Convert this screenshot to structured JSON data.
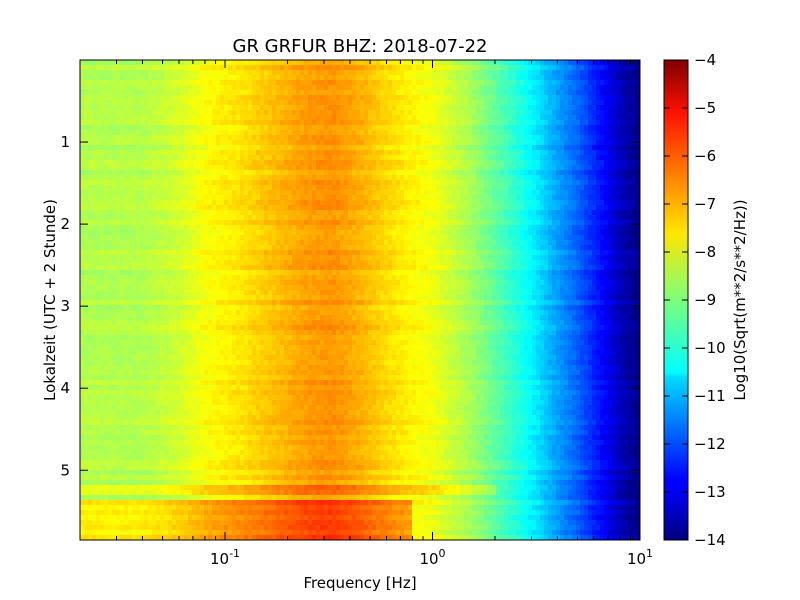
{
  "chart_data": {
    "type": "heatmap",
    "title": "GR GRFUR BHZ: 2018-07-22",
    "xlabel": "Frequency [Hz]",
    "ylabel": "Lokalzeit (UTC + 2 Stunde)",
    "x_scale": "log",
    "xlim": [
      0.02,
      10
    ],
    "x_ticks": [
      {
        "value": 0.1,
        "base": "10",
        "exp": "-1"
      },
      {
        "value": 1,
        "base": "10",
        "exp": "0"
      },
      {
        "value": 10,
        "base": "10",
        "exp": "1"
      }
    ],
    "ylim": [
      0,
      5.85
    ],
    "y_inverted": true,
    "y_ticks": [
      {
        "value": 1,
        "label": "1"
      },
      {
        "value": 2,
        "label": "2"
      },
      {
        "value": 3,
        "label": "3"
      },
      {
        "value": 4,
        "label": "4"
      },
      {
        "value": 5,
        "label": "5"
      }
    ],
    "colorbar": {
      "label": "Log10(Sqrt(m**2/s**2/Hz))",
      "range": [
        -14,
        -4
      ],
      "colormap": "jet",
      "ticks": [
        {
          "value": -4,
          "label": "−4"
        },
        {
          "value": -5,
          "label": "−5"
        },
        {
          "value": -6,
          "label": "−6"
        },
        {
          "value": -7,
          "label": "−7"
        },
        {
          "value": -8,
          "label": "−8"
        },
        {
          "value": -9,
          "label": "−9"
        },
        {
          "value": -10,
          "label": "−10"
        },
        {
          "value": -11,
          "label": "−11"
        },
        {
          "value": -12,
          "label": "−12"
        },
        {
          "value": -13,
          "label": "−13"
        },
        {
          "value": -14,
          "label": "−14"
        }
      ]
    },
    "frequency_profile": [
      {
        "f": 0.02,
        "v": -8.5
      },
      {
        "f": 0.04,
        "v": -8.5
      },
      {
        "f": 0.06,
        "v": -8.2
      },
      {
        "f": 0.08,
        "v": -7.8
      },
      {
        "f": 0.12,
        "v": -7.5
      },
      {
        "f": 0.18,
        "v": -7.1
      },
      {
        "f": 0.25,
        "v": -6.8
      },
      {
        "f": 0.33,
        "v": -6.7
      },
      {
        "f": 0.45,
        "v": -7.0
      },
      {
        "f": 0.6,
        "v": -7.4
      },
      {
        "f": 0.8,
        "v": -7.7
      },
      {
        "f": 1.0,
        "v": -7.9
      },
      {
        "f": 1.5,
        "v": -8.6
      },
      {
        "f": 2.0,
        "v": -9.3
      },
      {
        "f": 3.0,
        "v": -10.3
      },
      {
        "f": 4.0,
        "v": -11.2
      },
      {
        "f": 5.0,
        "v": -11.8
      },
      {
        "f": 6.0,
        "v": -12.4
      },
      {
        "f": 7.0,
        "v": -12.9
      },
      {
        "f": 8.0,
        "v": -13.4
      },
      {
        "f": 9.0,
        "v": -13.7
      },
      {
        "f": 10.0,
        "v": -14.0
      }
    ],
    "events": [
      {
        "t_start": 5.15,
        "t_end": 5.3,
        "f_max": 2.0,
        "boost": 0.6
      },
      {
        "t_start": 5.35,
        "t_end": 5.85,
        "f_max": 0.8,
        "boost": 0.9
      }
    ]
  }
}
